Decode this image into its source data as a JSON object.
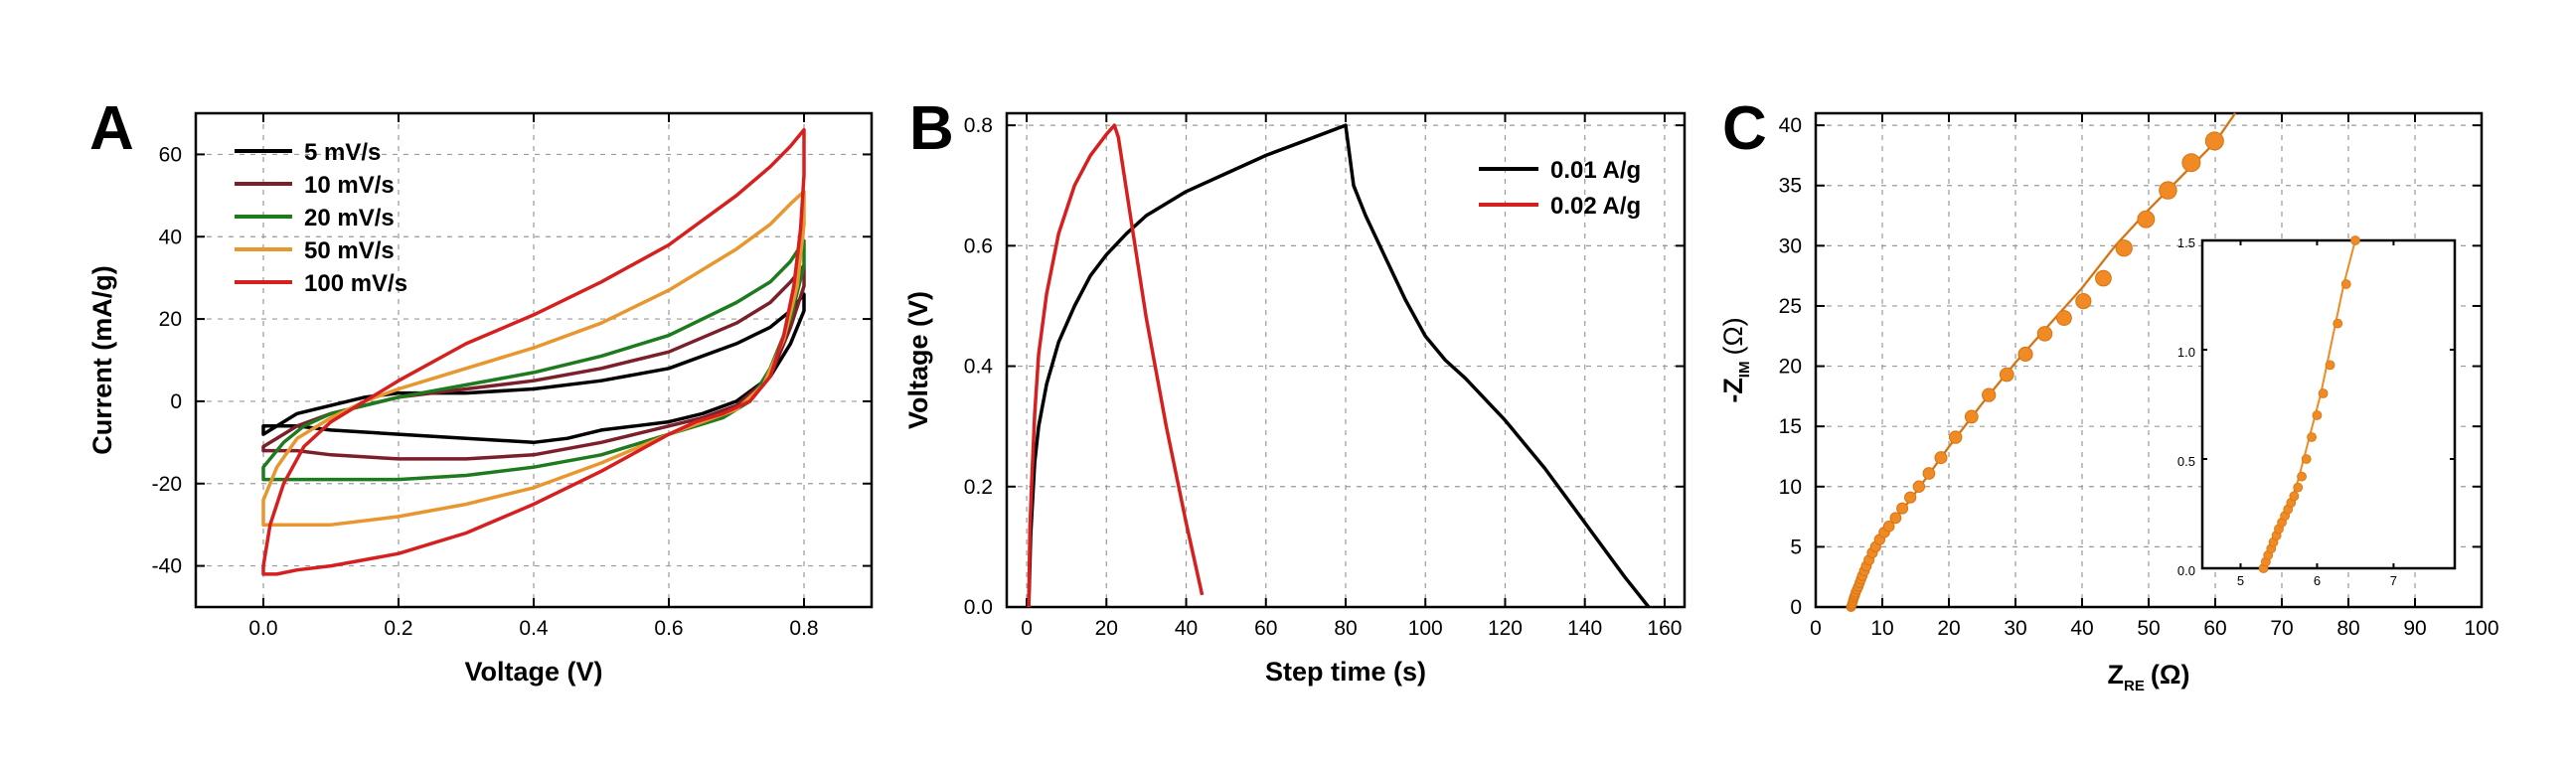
{
  "chart_data": [
    {
      "panel": "A",
      "type": "line",
      "xlabel": "Voltage (V)",
      "ylabel": "Current (mA/g)",
      "xlim": [
        -0.1,
        0.9
      ],
      "ylim": [
        -50,
        70
      ],
      "xticks": [
        0.0,
        0.2,
        0.4,
        0.6,
        0.8
      ],
      "xtick_labels": [
        "0.0",
        "0.2",
        "0.4",
        "0.6",
        "0.8"
      ],
      "yticks": [
        -40,
        -20,
        0,
        20,
        40,
        60
      ],
      "ytick_labels": [
        "-40",
        "-20",
        "0",
        "20",
        "40",
        "60"
      ],
      "grid": true,
      "legend_position": "top-left",
      "series": [
        {
          "name": "5 mV/s",
          "color": "#000000",
          "x": [
            0.0,
            0.05,
            0.1,
            0.15,
            0.2,
            0.3,
            0.4,
            0.5,
            0.6,
            0.7,
            0.75,
            0.78,
            0.8,
            0.8,
            0.78,
            0.75,
            0.7,
            0.65,
            0.6,
            0.55,
            0.5,
            0.45,
            0.4,
            0.3,
            0.2,
            0.1,
            0.05,
            0.0,
            0.0
          ],
          "y": [
            -8,
            -3,
            -1,
            1,
            2,
            2,
            3,
            5,
            8,
            14,
            18,
            22,
            26,
            22,
            14,
            6,
            0,
            -3,
            -5,
            -6,
            -7,
            -9,
            -10,
            -9,
            -8,
            -7,
            -6,
            -6,
            -8
          ]
        },
        {
          "name": "10 mV/s",
          "color": "#7b1f2a",
          "x": [
            0.0,
            0.05,
            0.1,
            0.2,
            0.3,
            0.4,
            0.5,
            0.6,
            0.7,
            0.75,
            0.78,
            0.8,
            0.8,
            0.78,
            0.75,
            0.7,
            0.65,
            0.6,
            0.55,
            0.5,
            0.4,
            0.3,
            0.2,
            0.1,
            0.05,
            0.0,
            0.0
          ],
          "y": [
            -11,
            -6,
            -3,
            1,
            3,
            5,
            8,
            12,
            19,
            24,
            29,
            33,
            28,
            18,
            6,
            -1,
            -4,
            -6,
            -8,
            -10,
            -13,
            -14,
            -14,
            -13,
            -12,
            -12,
            -11
          ]
        },
        {
          "name": "20 mV/s",
          "color": "#1e7a1e",
          "x": [
            0.0,
            0.03,
            0.06,
            0.1,
            0.2,
            0.3,
            0.4,
            0.5,
            0.6,
            0.7,
            0.75,
            0.78,
            0.8,
            0.8,
            0.78,
            0.75,
            0.72,
            0.68,
            0.64,
            0.6,
            0.5,
            0.4,
            0.3,
            0.2,
            0.1,
            0.05,
            0.0,
            0.0
          ],
          "y": [
            -16,
            -10,
            -6,
            -3,
            1,
            4,
            7,
            11,
            16,
            24,
            29,
            34,
            39,
            33,
            20,
            8,
            0,
            -4,
            -6,
            -8,
            -13,
            -16,
            -18,
            -19,
            -19,
            -19,
            -19,
            -16
          ]
        },
        {
          "name": "50 mV/s",
          "color": "#e8962e",
          "x": [
            0.0,
            0.02,
            0.05,
            0.1,
            0.15,
            0.2,
            0.3,
            0.4,
            0.5,
            0.6,
            0.7,
            0.75,
            0.78,
            0.8,
            0.8,
            0.79,
            0.77,
            0.74,
            0.7,
            0.65,
            0.6,
            0.5,
            0.4,
            0.3,
            0.2,
            0.1,
            0.05,
            0.0,
            0.0
          ],
          "y": [
            -24,
            -16,
            -9,
            -4,
            0,
            3,
            8,
            13,
            19,
            27,
            37,
            43,
            48,
            51,
            43,
            28,
            15,
            4,
            -2,
            -5,
            -8,
            -15,
            -21,
            -25,
            -28,
            -30,
            -30,
            -30,
            -24
          ]
        },
        {
          "name": "100 mV/s",
          "color": "#d62020",
          "x": [
            0.0,
            0.01,
            0.03,
            0.06,
            0.1,
            0.15,
            0.2,
            0.3,
            0.4,
            0.5,
            0.6,
            0.7,
            0.75,
            0.78,
            0.8,
            0.8,
            0.795,
            0.785,
            0.77,
            0.75,
            0.72,
            0.68,
            0.64,
            0.6,
            0.5,
            0.4,
            0.3,
            0.2,
            0.1,
            0.05,
            0.02,
            0.0,
            0.0
          ],
          "y": [
            -40,
            -30,
            -20,
            -11,
            -5,
            0,
            5,
            14,
            21,
            29,
            38,
            50,
            57,
            62,
            66,
            55,
            42,
            28,
            16,
            6,
            0,
            -3,
            -5,
            -8,
            -17,
            -25,
            -32,
            -37,
            -40,
            -41,
            -42,
            -42,
            -40
          ]
        }
      ]
    },
    {
      "panel": "B",
      "type": "line",
      "xlabel": "Step time (s)",
      "ylabel": "Voltage (V)",
      "xlim": [
        -5,
        165
      ],
      "ylim": [
        0.0,
        0.82
      ],
      "xticks": [
        0,
        20,
        40,
        60,
        80,
        100,
        120,
        140,
        160
      ],
      "xtick_labels": [
        "0",
        "20",
        "40",
        "60",
        "80",
        "100",
        "120",
        "140",
        "160"
      ],
      "yticks": [
        0.0,
        0.2,
        0.4,
        0.6,
        0.8
      ],
      "ytick_labels": [
        "0.0",
        "0.2",
        "0.4",
        "0.6",
        "0.8"
      ],
      "grid": true,
      "legend_position": "top-right",
      "series": [
        {
          "name": "0.01 A/g",
          "color": "#000000",
          "x": [
            0.5,
            1,
            2,
            3,
            5,
            8,
            12,
            16,
            20,
            25,
            30,
            40,
            50,
            60,
            70,
            80,
            82,
            85,
            90,
            95,
            100,
            105,
            110,
            120,
            130,
            140,
            150,
            156
          ],
          "y": [
            0.0,
            0.12,
            0.24,
            0.3,
            0.37,
            0.44,
            0.5,
            0.55,
            0.585,
            0.62,
            0.65,
            0.69,
            0.72,
            0.75,
            0.775,
            0.8,
            0.7,
            0.65,
            0.58,
            0.51,
            0.45,
            0.41,
            0.38,
            0.31,
            0.23,
            0.14,
            0.05,
            0.0
          ]
        },
        {
          "name": "0.02 A/g",
          "color": "#d62020",
          "x": [
            0.5,
            0.8,
            1.2,
            2,
            3,
            5,
            8,
            12,
            16,
            20,
            22,
            23,
            26,
            30,
            35,
            40,
            44
          ],
          "y": [
            0.0,
            0.13,
            0.2,
            0.32,
            0.42,
            0.52,
            0.62,
            0.7,
            0.75,
            0.785,
            0.8,
            0.78,
            0.65,
            0.48,
            0.3,
            0.14,
            0.02
          ]
        }
      ]
    },
    {
      "panel": "C",
      "type": "scatter",
      "xlabel": "Z",
      "xlabel_sub": "RE",
      "xlabel_unit": "(Ω)",
      "ylabel": "-Z",
      "ylabel_sub": "IM",
      "ylabel_unit": "(Ω)",
      "xlim": [
        0,
        100
      ],
      "ylim": [
        0,
        41
      ],
      "xticks": [
        0,
        10,
        20,
        30,
        40,
        50,
        60,
        70,
        80,
        90,
        100
      ],
      "xtick_labels": [
        "0",
        "10",
        "20",
        "30",
        "40",
        "50",
        "60",
        "70",
        "80",
        "90",
        "100"
      ],
      "yticks": [
        0,
        5,
        10,
        15,
        20,
        25,
        30,
        35,
        40
      ],
      "ytick_labels": [
        "0",
        "5",
        "10",
        "15",
        "20",
        "25",
        "30",
        "35",
        "40"
      ],
      "grid": true,
      "color": "#f08a24",
      "line_x": [
        5.3,
        5.6,
        6.0,
        6.5,
        7.2,
        8,
        9,
        10,
        12,
        15,
        20,
        25,
        30,
        35,
        40,
        45,
        50,
        55,
        60,
        63
      ],
      "line_y": [
        0,
        0.5,
        1.2,
        2.0,
        3.0,
        4.0,
        5.0,
        5.8,
        7.3,
        9.5,
        13.3,
        16.9,
        20.3,
        23.4,
        26.5,
        30.0,
        33.0,
        35.8,
        38.6,
        41
      ],
      "points_x": [
        5.3,
        5.4,
        5.5,
        5.6,
        5.7,
        5.8,
        5.9,
        6.0,
        6.2,
        6.4,
        6.6,
        6.8,
        7.0,
        7.3,
        7.6,
        8.0,
        8.5,
        9.0,
        9.6,
        10.3,
        11.0,
        12.0,
        13.0,
        14.2,
        15.5,
        17.0,
        18.8,
        21.0,
        23.4,
        26.0,
        28.7,
        31.5,
        34.4,
        37.3,
        40.2,
        43.2,
        46.3,
        49.6,
        52.9,
        56.4,
        59.9
      ],
      "points_y": [
        0,
        0.15,
        0.3,
        0.5,
        0.7,
        0.85,
        1.0,
        1.2,
        1.45,
        1.7,
        2.0,
        2.3,
        2.6,
        3.0,
        3.4,
        3.9,
        4.5,
        5.0,
        5.6,
        6.2,
        6.7,
        7.4,
        8.2,
        9.1,
        10.0,
        11.1,
        12.4,
        14.1,
        15.8,
        17.6,
        19.3,
        21.0,
        22.7,
        24.0,
        25.4,
        27.3,
        29.8,
        32.2,
        34.6,
        36.9,
        38.7
      ],
      "inset": {
        "type": "scatter",
        "xlim": [
          4.5,
          7.8
        ],
        "ylim": [
          0,
          1.5
        ],
        "xticks": [
          5,
          6,
          7
        ],
        "xtick_labels": [
          "5",
          "6",
          "7"
        ],
        "yticks": [
          0.0,
          0.5,
          1.0,
          1.5
        ],
        "ytick_labels": [
          "0.0",
          "0.5",
          "1.0",
          "1.5"
        ],
        "line_x": [
          5.3,
          5.45,
          5.6,
          5.75,
          5.9,
          6.05,
          6.2,
          6.35,
          6.5
        ],
        "line_y": [
          0.0,
          0.12,
          0.25,
          0.4,
          0.6,
          0.8,
          1.05,
          1.3,
          1.5
        ],
        "points_x": [
          5.3,
          5.33,
          5.36,
          5.4,
          5.43,
          5.47,
          5.5,
          5.54,
          5.58,
          5.62,
          5.66,
          5.7,
          5.75,
          5.8,
          5.86,
          5.93,
          6.0,
          6.08,
          6.17,
          6.27,
          6.38,
          6.5
        ],
        "points_y": [
          0.0,
          0.03,
          0.06,
          0.09,
          0.12,
          0.15,
          0.18,
          0.21,
          0.24,
          0.27,
          0.3,
          0.33,
          0.37,
          0.42,
          0.5,
          0.6,
          0.7,
          0.8,
          0.93,
          1.12,
          1.3,
          1.5
        ]
      }
    }
  ]
}
